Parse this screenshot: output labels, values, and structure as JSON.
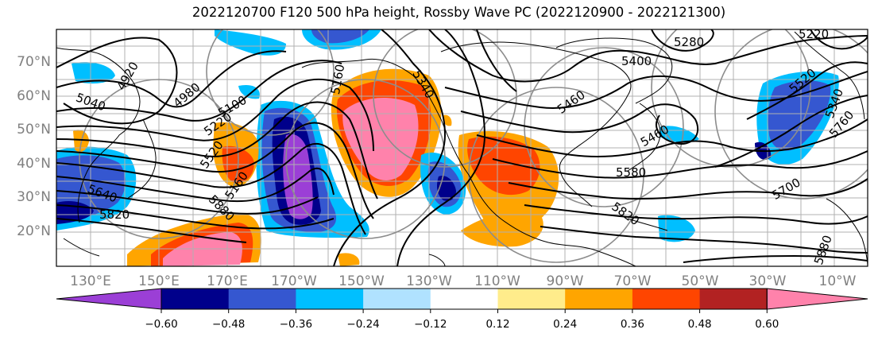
{
  "title": "2022120700 F120 500 hPa height, Rossby Wave PC (2022120900 - 2022121300)",
  "lat_labels": [
    "70°N",
    "60°N",
    "50°N",
    "40°N",
    "30°N",
    "20°N"
  ],
  "lon_labels": [
    "130°E",
    "150°E",
    "170°E",
    "170°W",
    "150°W",
    "130°W",
    "110°W",
    "90°W",
    "70°W",
    "50°W",
    "30°W",
    "10°W"
  ],
  "contour_labels": [
    "4920",
    "4980",
    "5040",
    "5100",
    "5160",
    "5220",
    "5280",
    "5340",
    "5400",
    "5460",
    "5520",
    "5580",
    "5640",
    "5700",
    "5760",
    "5820",
    "5880",
    "5160",
    "5220",
    "5520",
    "5340",
    "5820",
    "5880",
    "5460"
  ],
  "colorbar": {
    "ticks": [
      "−0.60",
      "−0.48",
      "−0.36",
      "−0.24",
      "−0.12",
      "0.12",
      "0.24",
      "0.36",
      "0.48",
      "0.60"
    ],
    "colors": {
      "under": "#9b3fd6",
      "neg60": "#00008b",
      "neg48": "#3557d0",
      "neg36": "#00bfff",
      "neg24": "#b0e2ff",
      "neutral": "#ffffff",
      "pos12": "#ffec8b",
      "pos24": "#ffa500",
      "pos36": "#ff4500",
      "pos48": "#b22222",
      "over": "#ff82ab"
    }
  }
}
